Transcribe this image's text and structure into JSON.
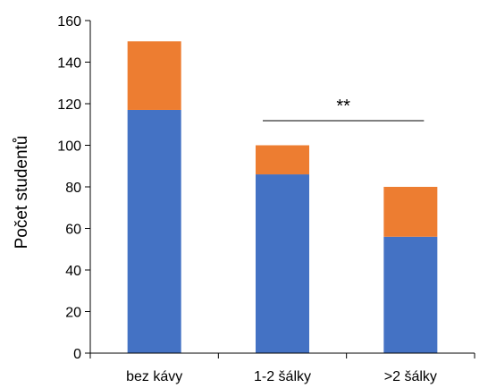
{
  "chart_data": {
    "type": "bar",
    "stacked": true,
    "categories": [
      "bez kávy",
      "1-2 šálky",
      ">2 šálky"
    ],
    "series": [
      {
        "values": [
          117,
          86,
          56
        ],
        "color": "#4472C4"
      },
      {
        "values": [
          33,
          14,
          24
        ],
        "color": "#ED7D31"
      }
    ],
    "ylabel": "Počet studentů",
    "ylim": [
      0,
      160
    ],
    "yticks": [
      "0",
      "20",
      "40",
      "60",
      "80",
      "100",
      "120",
      "140",
      "160"
    ],
    "grid": false,
    "annotation": {
      "text": "**",
      "from_category": 1,
      "to_category": 2
    }
  }
}
